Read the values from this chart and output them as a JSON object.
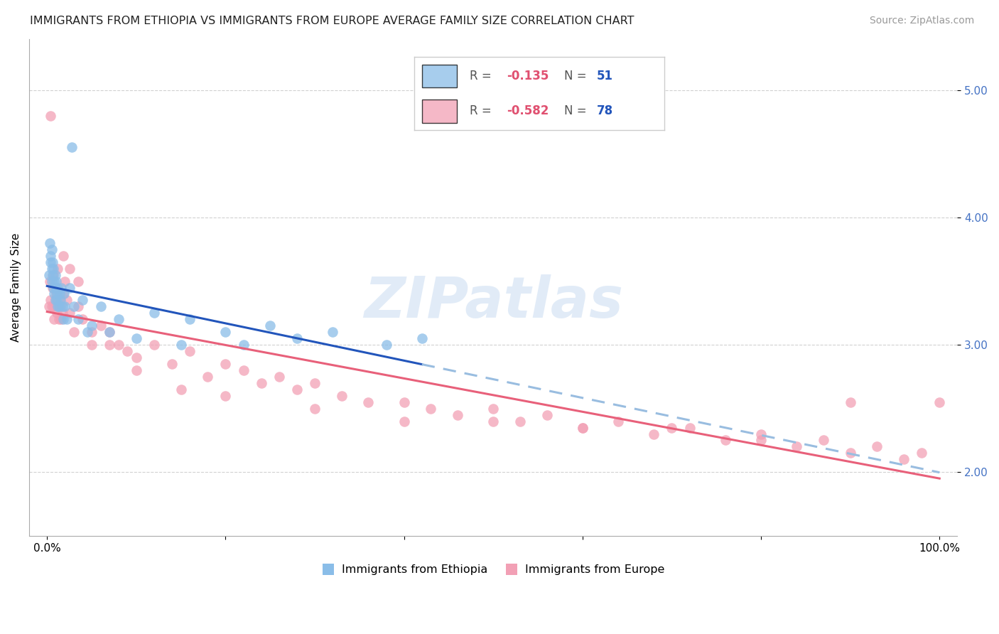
{
  "title": "IMMIGRANTS FROM ETHIOPIA VS IMMIGRANTS FROM EUROPE AVERAGE FAMILY SIZE CORRELATION CHART",
  "source": "Source: ZipAtlas.com",
  "ylabel": "Average Family Size",
  "yticks": [
    2.0,
    3.0,
    4.0,
    5.0
  ],
  "ylim": [
    1.5,
    5.4
  ],
  "xlim": [
    -0.02,
    1.02
  ],
  "background_color": "#ffffff",
  "grid_color": "#cccccc",
  "ethiopia_color": "#8abde8",
  "europe_color": "#f2a0b5",
  "ethiopia_line_solid_color": "#2255bb",
  "ethiopia_line_dash_color": "#99bde0",
  "europe_line_color": "#e8607a",
  "legend_r_val_ethiopia": "-0.135",
  "legend_n_val_ethiopia": "51",
  "legend_r_val_europe": "-0.582",
  "legend_n_val_europe": "78",
  "ethiopia_x": [
    0.002,
    0.003,
    0.004,
    0.004,
    0.005,
    0.005,
    0.005,
    0.006,
    0.006,
    0.007,
    0.007,
    0.008,
    0.008,
    0.009,
    0.009,
    0.01,
    0.01,
    0.011,
    0.011,
    0.012,
    0.012,
    0.013,
    0.014,
    0.015,
    0.016,
    0.017,
    0.018,
    0.019,
    0.02,
    0.022,
    0.025,
    0.028,
    0.03,
    0.035,
    0.04,
    0.045,
    0.05,
    0.06,
    0.07,
    0.08,
    0.1,
    0.12,
    0.15,
    0.16,
    0.2,
    0.22,
    0.25,
    0.28,
    0.32,
    0.38,
    0.42
  ],
  "ethiopia_y": [
    3.55,
    3.8,
    3.65,
    3.7,
    3.5,
    3.6,
    3.75,
    3.55,
    3.65,
    3.45,
    3.6,
    3.5,
    3.4,
    3.55,
    3.35,
    3.45,
    3.5,
    3.4,
    3.35,
    3.3,
    3.45,
    3.3,
    3.4,
    3.35,
    3.45,
    3.3,
    3.2,
    3.4,
    3.3,
    3.2,
    3.45,
    4.55,
    3.3,
    3.2,
    3.35,
    3.1,
    3.15,
    3.3,
    3.1,
    3.2,
    3.05,
    3.25,
    3.0,
    3.2,
    3.1,
    3.0,
    3.15,
    3.05,
    3.1,
    3.0,
    3.05
  ],
  "europe_x": [
    0.002,
    0.003,
    0.004,
    0.005,
    0.006,
    0.007,
    0.008,
    0.009,
    0.01,
    0.011,
    0.012,
    0.013,
    0.014,
    0.015,
    0.016,
    0.017,
    0.018,
    0.02,
    0.022,
    0.025,
    0.03,
    0.035,
    0.04,
    0.05,
    0.06,
    0.07,
    0.08,
    0.09,
    0.1,
    0.12,
    0.14,
    0.16,
    0.18,
    0.2,
    0.22,
    0.24,
    0.26,
    0.28,
    0.3,
    0.33,
    0.36,
    0.4,
    0.43,
    0.46,
    0.5,
    0.53,
    0.56,
    0.6,
    0.64,
    0.68,
    0.72,
    0.76,
    0.8,
    0.84,
    0.87,
    0.9,
    0.93,
    0.96,
    0.98,
    1.0,
    0.004,
    0.007,
    0.012,
    0.018,
    0.025,
    0.035,
    0.05,
    0.07,
    0.1,
    0.15,
    0.2,
    0.3,
    0.4,
    0.5,
    0.6,
    0.7,
    0.8,
    0.9
  ],
  "europe_y": [
    3.3,
    3.5,
    3.35,
    3.3,
    3.45,
    3.3,
    3.2,
    3.35,
    3.4,
    3.25,
    3.3,
    3.2,
    3.35,
    3.3,
    3.2,
    3.25,
    3.4,
    3.5,
    3.35,
    3.25,
    3.1,
    3.3,
    3.2,
    3.0,
    3.15,
    3.1,
    3.0,
    2.95,
    2.9,
    3.0,
    2.85,
    2.95,
    2.75,
    2.85,
    2.8,
    2.7,
    2.75,
    2.65,
    2.7,
    2.6,
    2.55,
    2.55,
    2.5,
    2.45,
    2.5,
    2.4,
    2.45,
    2.35,
    2.4,
    2.3,
    2.35,
    2.25,
    2.3,
    2.2,
    2.25,
    2.15,
    2.2,
    2.1,
    2.15,
    2.55,
    4.8,
    3.55,
    3.6,
    3.7,
    3.6,
    3.5,
    3.1,
    3.0,
    2.8,
    2.65,
    2.6,
    2.5,
    2.4,
    2.4,
    2.35,
    2.35,
    2.25,
    2.55
  ],
  "title_fontsize": 11.5,
  "axis_label_fontsize": 11,
  "tick_fontsize": 11,
  "legend_fontsize": 11.5,
  "source_fontsize": 10
}
